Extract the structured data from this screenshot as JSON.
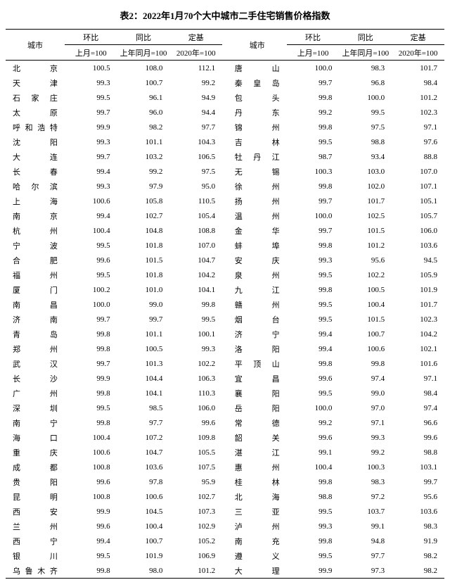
{
  "title": "表2：2022年1月70个大中城市二手住宅销售价格指数",
  "headers": {
    "city": "城市",
    "mom": "环比",
    "yoy": "同比",
    "base": "定基",
    "mom_sub": "上月=100",
    "yoy_sub": "上年同月=100",
    "base_sub": "2020年=100"
  },
  "left": [
    {
      "c": "北京",
      "m": "100.5",
      "y": "108.0",
      "b": "112.1"
    },
    {
      "c": "天津",
      "m": "99.3",
      "y": "100.7",
      "b": "99.2"
    },
    {
      "c": "石家庄",
      "m": "99.5",
      "y": "96.1",
      "b": "94.9"
    },
    {
      "c": "太原",
      "m": "99.7",
      "y": "96.0",
      "b": "94.4"
    },
    {
      "c": "呼和浩特",
      "m": "99.9",
      "y": "98.2",
      "b": "97.7"
    },
    {
      "c": "沈阳",
      "m": "99.3",
      "y": "101.1",
      "b": "104.3"
    },
    {
      "c": "大连",
      "m": "99.7",
      "y": "103.2",
      "b": "106.5"
    },
    {
      "c": "长春",
      "m": "99.4",
      "y": "99.2",
      "b": "97.5"
    },
    {
      "c": "哈尔滨",
      "m": "99.3",
      "y": "97.9",
      "b": "95.0"
    },
    {
      "c": "上海",
      "m": "100.6",
      "y": "105.8",
      "b": "110.5"
    },
    {
      "c": "南京",
      "m": "99.4",
      "y": "102.7",
      "b": "105.4"
    },
    {
      "c": "杭州",
      "m": "100.4",
      "y": "104.8",
      "b": "108.8"
    },
    {
      "c": "宁波",
      "m": "99.5",
      "y": "101.8",
      "b": "107.0"
    },
    {
      "c": "合肥",
      "m": "99.6",
      "y": "101.5",
      "b": "104.7"
    },
    {
      "c": "福州",
      "m": "99.5",
      "y": "101.8",
      "b": "104.2"
    },
    {
      "c": "厦门",
      "m": "100.2",
      "y": "101.0",
      "b": "104.1"
    },
    {
      "c": "南昌",
      "m": "100.0",
      "y": "99.0",
      "b": "99.8"
    },
    {
      "c": "济南",
      "m": "99.7",
      "y": "99.7",
      "b": "99.5"
    },
    {
      "c": "青岛",
      "m": "99.8",
      "y": "101.1",
      "b": "100.1"
    },
    {
      "c": "郑州",
      "m": "99.8",
      "y": "100.5",
      "b": "99.3"
    },
    {
      "c": "武汉",
      "m": "99.7",
      "y": "101.3",
      "b": "102.2"
    },
    {
      "c": "长沙",
      "m": "99.9",
      "y": "104.4",
      "b": "106.3"
    },
    {
      "c": "广州",
      "m": "99.8",
      "y": "104.1",
      "b": "110.3"
    },
    {
      "c": "深圳",
      "m": "99.5",
      "y": "98.5",
      "b": "106.0"
    },
    {
      "c": "南宁",
      "m": "99.8",
      "y": "97.7",
      "b": "99.6"
    },
    {
      "c": "海口",
      "m": "100.4",
      "y": "107.2",
      "b": "109.8"
    },
    {
      "c": "重庆",
      "m": "100.6",
      "y": "104.7",
      "b": "105.5"
    },
    {
      "c": "成都",
      "m": "100.8",
      "y": "103.6",
      "b": "107.5"
    },
    {
      "c": "贵阳",
      "m": "99.6",
      "y": "97.8",
      "b": "95.9"
    },
    {
      "c": "昆明",
      "m": "100.8",
      "y": "100.6",
      "b": "102.7"
    },
    {
      "c": "西安",
      "m": "99.9",
      "y": "104.5",
      "b": "107.3"
    },
    {
      "c": "兰州",
      "m": "99.6",
      "y": "100.4",
      "b": "102.9"
    },
    {
      "c": "西宁",
      "m": "99.4",
      "y": "100.7",
      "b": "105.2"
    },
    {
      "c": "银川",
      "m": "99.5",
      "y": "101.9",
      "b": "106.9"
    },
    {
      "c": "乌鲁木齐",
      "m": "99.8",
      "y": "98.0",
      "b": "101.2"
    }
  ],
  "right": [
    {
      "c": "唐山",
      "m": "100.0",
      "y": "98.3",
      "b": "101.7"
    },
    {
      "c": "秦皇岛",
      "m": "99.7",
      "y": "96.8",
      "b": "98.4"
    },
    {
      "c": "包头",
      "m": "99.8",
      "y": "100.0",
      "b": "101.2"
    },
    {
      "c": "丹东",
      "m": "99.2",
      "y": "99.5",
      "b": "102.3"
    },
    {
      "c": "锦州",
      "m": "99.8",
      "y": "97.5",
      "b": "97.1"
    },
    {
      "c": "吉林",
      "m": "99.5",
      "y": "98.8",
      "b": "97.6"
    },
    {
      "c": "牡丹江",
      "m": "98.7",
      "y": "93.4",
      "b": "88.8"
    },
    {
      "c": "无锡",
      "m": "100.3",
      "y": "103.0",
      "b": "107.0"
    },
    {
      "c": "徐州",
      "m": "99.8",
      "y": "102.0",
      "b": "107.1"
    },
    {
      "c": "扬州",
      "m": "99.7",
      "y": "101.7",
      "b": "105.1"
    },
    {
      "c": "温州",
      "m": "100.0",
      "y": "102.5",
      "b": "105.7"
    },
    {
      "c": "金华",
      "m": "99.7",
      "y": "101.5",
      "b": "106.0"
    },
    {
      "c": "蚌埠",
      "m": "99.8",
      "y": "101.2",
      "b": "103.6"
    },
    {
      "c": "安庆",
      "m": "99.3",
      "y": "95.6",
      "b": "94.5"
    },
    {
      "c": "泉州",
      "m": "99.5",
      "y": "102.2",
      "b": "105.9"
    },
    {
      "c": "九江",
      "m": "99.8",
      "y": "100.5",
      "b": "101.9"
    },
    {
      "c": "赣州",
      "m": "99.5",
      "y": "100.4",
      "b": "101.7"
    },
    {
      "c": "烟台",
      "m": "99.5",
      "y": "101.5",
      "b": "102.3"
    },
    {
      "c": "济宁",
      "m": "99.4",
      "y": "100.7",
      "b": "104.2"
    },
    {
      "c": "洛阳",
      "m": "99.4",
      "y": "100.6",
      "b": "102.1"
    },
    {
      "c": "平顶山",
      "m": "99.8",
      "y": "99.8",
      "b": "101.6"
    },
    {
      "c": "宜昌",
      "m": "99.6",
      "y": "97.4",
      "b": "97.1"
    },
    {
      "c": "襄阳",
      "m": "99.5",
      "y": "99.0",
      "b": "98.4"
    },
    {
      "c": "岳阳",
      "m": "100.0",
      "y": "97.0",
      "b": "97.4"
    },
    {
      "c": "常德",
      "m": "99.2",
      "y": "97.1",
      "b": "96.6"
    },
    {
      "c": "韶关",
      "m": "99.6",
      "y": "99.3",
      "b": "99.6"
    },
    {
      "c": "湛江",
      "m": "99.1",
      "y": "99.2",
      "b": "98.8"
    },
    {
      "c": "惠州",
      "m": "100.4",
      "y": "100.3",
      "b": "103.1"
    },
    {
      "c": "桂林",
      "m": "99.8",
      "y": "98.3",
      "b": "99.7"
    },
    {
      "c": "北海",
      "m": "98.8",
      "y": "97.2",
      "b": "95.6"
    },
    {
      "c": "三亚",
      "m": "99.5",
      "y": "103.7",
      "b": "103.6"
    },
    {
      "c": "泸州",
      "m": "99.3",
      "y": "99.1",
      "b": "98.3"
    },
    {
      "c": "南充",
      "m": "99.8",
      "y": "94.8",
      "b": "91.9"
    },
    {
      "c": "遵义",
      "m": "99.5",
      "y": "97.7",
      "b": "98.2"
    },
    {
      "c": "大理",
      "m": "99.9",
      "y": "97.3",
      "b": "98.2"
    }
  ]
}
